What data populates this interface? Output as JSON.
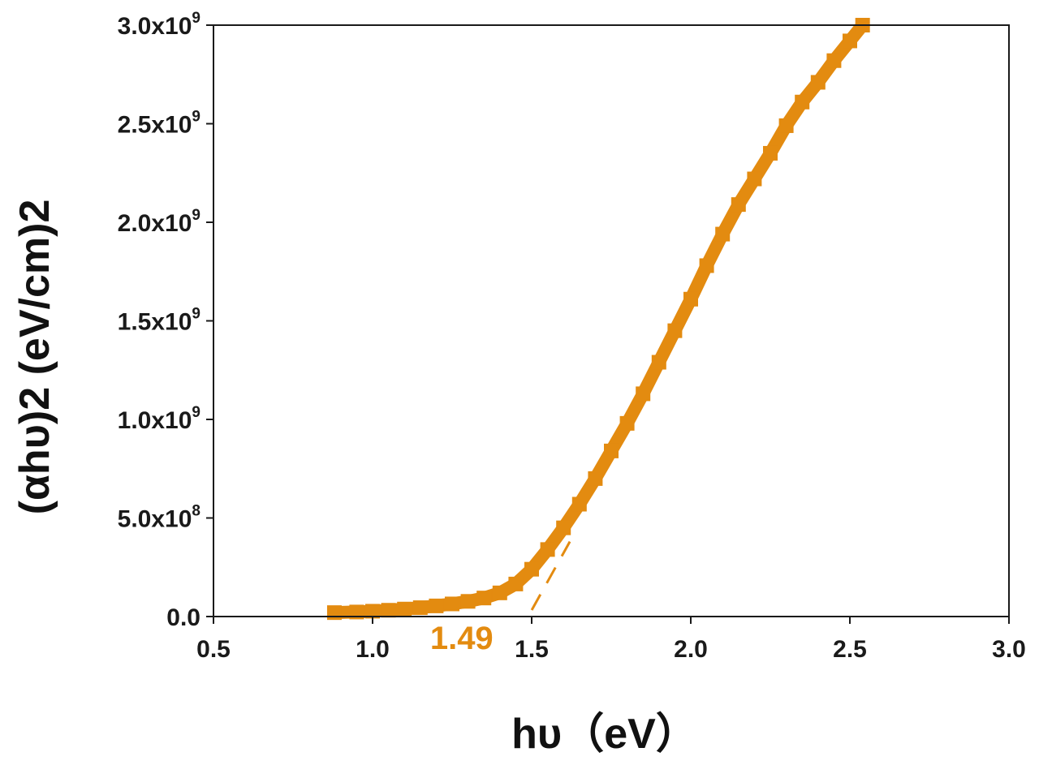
{
  "chart_data": {
    "type": "scatter",
    "title": "",
    "xlabel": "hυ（eV）",
    "ylabel": "(αhυ)2 (eV/cm)2",
    "xlim": [
      0.5,
      3.0
    ],
    "ylim": [
      0,
      3000000000
    ],
    "x_ticks": [
      0.5,
      1.0,
      1.5,
      2.0,
      2.5,
      3.0
    ],
    "x_tick_labels": [
      "0.5",
      "1.0",
      "1.5",
      "2.0",
      "2.5",
      "3.0"
    ],
    "y_ticks": [
      0,
      500000000,
      1000000000,
      1500000000,
      2000000000,
      2500000000,
      3000000000
    ],
    "y_tick_labels": [
      {
        "mantissa": "0.0",
        "exponent": ""
      },
      {
        "mantissa": "5.0x10",
        "exponent": "8"
      },
      {
        "mantissa": "1.0x10",
        "exponent": "9"
      },
      {
        "mantissa": "1.5x10",
        "exponent": "9"
      },
      {
        "mantissa": "2.0x10",
        "exponent": "9"
      },
      {
        "mantissa": "2.5x10",
        "exponent": "9"
      },
      {
        "mantissa": "3.0x10",
        "exponent": "9"
      }
    ],
    "grid": false,
    "series": [
      {
        "color": "#e38b10",
        "marker": "square",
        "x": [
          0.88,
          0.95,
          1.0,
          1.05,
          1.1,
          1.15,
          1.2,
          1.25,
          1.3,
          1.35,
          1.4,
          1.45,
          1.5,
          1.55,
          1.6,
          1.65,
          1.7,
          1.75,
          1.8,
          1.85,
          1.9,
          1.95,
          2.0,
          2.05,
          2.1,
          2.15,
          2.2,
          2.25,
          2.3,
          2.35,
          2.4,
          2.45,
          2.5,
          2.54
        ],
        "y": [
          20000000,
          23000000,
          27000000,
          32000000,
          38000000,
          45000000,
          54000000,
          64000000,
          77000000,
          94000000,
          120000000,
          165000000,
          240000000,
          340000000,
          450000000,
          570000000,
          700000000,
          840000000,
          980000000,
          1130000000,
          1290000000,
          1450000000,
          1610000000,
          1780000000,
          1940000000,
          2090000000,
          2220000000,
          2350000000,
          2490000000,
          2610000000,
          2710000000,
          2820000000,
          2920000000,
          3000000000
        ]
      }
    ],
    "fit_line": {
      "color": "#e38b10",
      "style": "dashed",
      "x": [
        1.49,
        1.62
      ],
      "y": [
        0,
        380000000
      ]
    },
    "annotations": [
      {
        "text": "1.49",
        "color": "#e38b10"
      }
    ]
  }
}
